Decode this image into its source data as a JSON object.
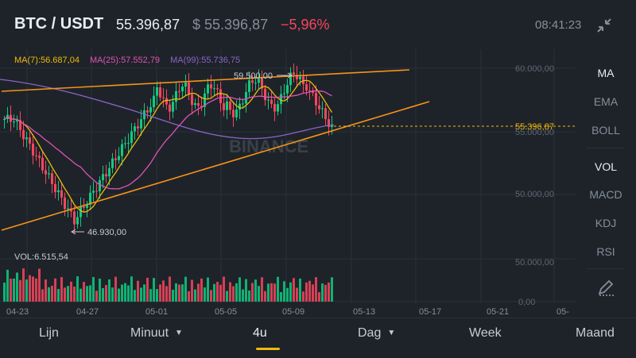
{
  "header": {
    "pair": "BTC / USDT",
    "last_price": "55.396,87",
    "usd_price": "$ 55.396,87",
    "change": "−5,96%",
    "time": "08:41:23",
    "collapse_icon": "collapse-arrows-icon"
  },
  "chart": {
    "ma_legend": {
      "ma7": "MA(7):56.687,04",
      "ma25": "MA(25):57.552,79",
      "ma99": "MA(99):55.736,75"
    },
    "colors": {
      "ma7": "#f0b90b",
      "ma25": "#e052b8",
      "ma99": "#8b64c8",
      "trendline": "#f7931a",
      "up": "#0ecb81",
      "down": "#f6465d",
      "price_line": "#f0b90b"
    },
    "price_axis": [
      "60.000,00",
      "55.000,00",
      "50.000,00"
    ],
    "current_price_label": "55.396,87",
    "high_label": "59.500,00",
    "low_label": "46.930,00",
    "watermark": "BINANCE",
    "volume_legend": "VOL:6.515,54",
    "volume_axis": [
      "50.000,00",
      "0,00"
    ],
    "date_axis": [
      "04-23",
      "04-27",
      "05-01",
      "05-05",
      "05-09",
      "05-13",
      "05-17",
      "05-21",
      "05-"
    ]
  },
  "side_menu": {
    "items": [
      "MA",
      "EMA",
      "BOLL",
      "VOL",
      "MACD",
      "KDJ",
      "RSI"
    ],
    "draw_icon": "pen-ruler-icon"
  },
  "tabs": {
    "items": [
      "Lijn",
      "Minuut",
      "4u",
      "Dag",
      "Week",
      "Maand"
    ],
    "active": "4u"
  }
}
